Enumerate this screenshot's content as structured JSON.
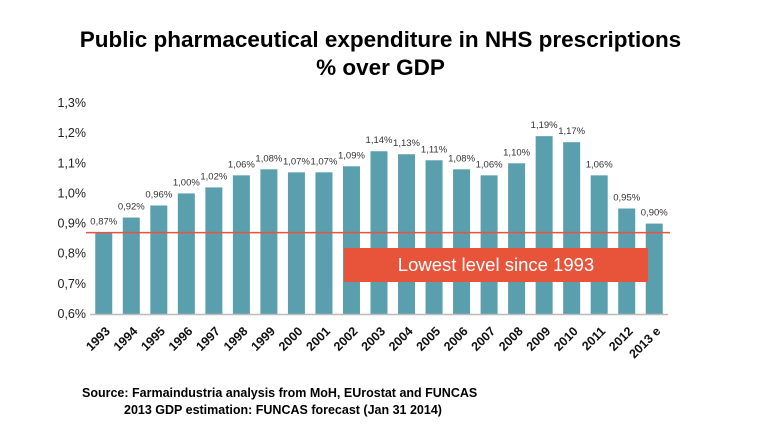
{
  "title_line1": "Public pharmaceutical expenditure in NHS prescriptions",
  "title_line2": "% over GDP",
  "annotation": "Lowest level since 1993",
  "source_line1": "Source: Farmaindustria analysis from MoH, EUrostat and FUNCAS",
  "source_line2": "2013 GDP estimation: FUNCAS forecast (Jan 31 2014)",
  "colors": {
    "bar": "#5a9fae",
    "reference_line": "#e8543a",
    "annotation_bg": "#e8543a"
  },
  "chart_data": {
    "type": "bar",
    "categories": [
      "1993",
      "1994",
      "1995",
      "1996",
      "1997",
      "1998",
      "1999",
      "2000",
      "2001",
      "2002",
      "2003",
      "2004",
      "2005",
      "2006",
      "2007",
      "2008",
      "2009",
      "2010",
      "2011",
      "2012",
      "2013 e"
    ],
    "values": [
      0.87,
      0.92,
      0.96,
      1.0,
      1.02,
      1.06,
      1.08,
      1.07,
      1.07,
      1.09,
      1.14,
      1.13,
      1.11,
      1.08,
      1.06,
      1.1,
      1.19,
      1.17,
      1.06,
      0.95,
      0.9
    ],
    "data_labels": [
      "0,87%",
      "0,92%",
      "0,96%",
      "1,00%",
      "1,02%",
      "1,06%",
      "1,08%",
      "1,07%",
      "1,07%",
      "1,09%",
      "1,14%",
      "1,13%",
      "1,11%",
      "1,08%",
      "1,06%",
      "1,10%",
      "1,19%",
      "1,17%",
      "1,06%",
      "0,95%",
      "0,90%"
    ],
    "yticks": [
      0.6,
      0.7,
      0.8,
      0.9,
      1.0,
      1.1,
      1.2,
      1.3
    ],
    "ytick_labels": [
      "0,6%",
      "0,7%",
      "0,8%",
      "0,9%",
      "1,0%",
      "1,1%",
      "1,2%",
      "1,3%"
    ],
    "ylim": [
      0.6,
      1.3
    ],
    "reference_line": 0.87,
    "grid": false,
    "legend": "none"
  }
}
